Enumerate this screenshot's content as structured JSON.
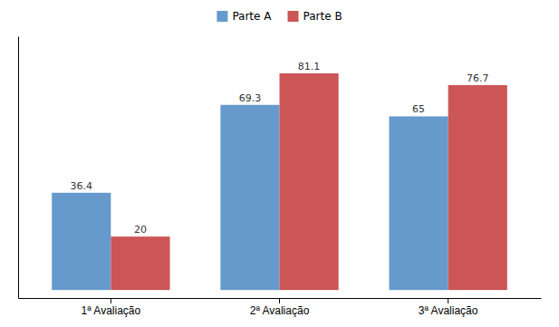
{
  "chart_data": {
    "type": "bar",
    "categories": [
      "1ª Avaliação",
      "2ª Avaliação",
      "3ª Avaliação"
    ],
    "series": [
      {
        "name": "Parte A",
        "color": "#6699cc",
        "values": [
          36.4,
          69.3,
          65.0
        ]
      },
      {
        "name": "Parte B",
        "color": "#cc5555",
        "values": [
          20.0,
          81.1,
          76.7
        ]
      }
    ],
    "ylim": [
      -3,
      95
    ],
    "data_labels": true,
    "tick_labels": "x",
    "legend": "top"
  }
}
